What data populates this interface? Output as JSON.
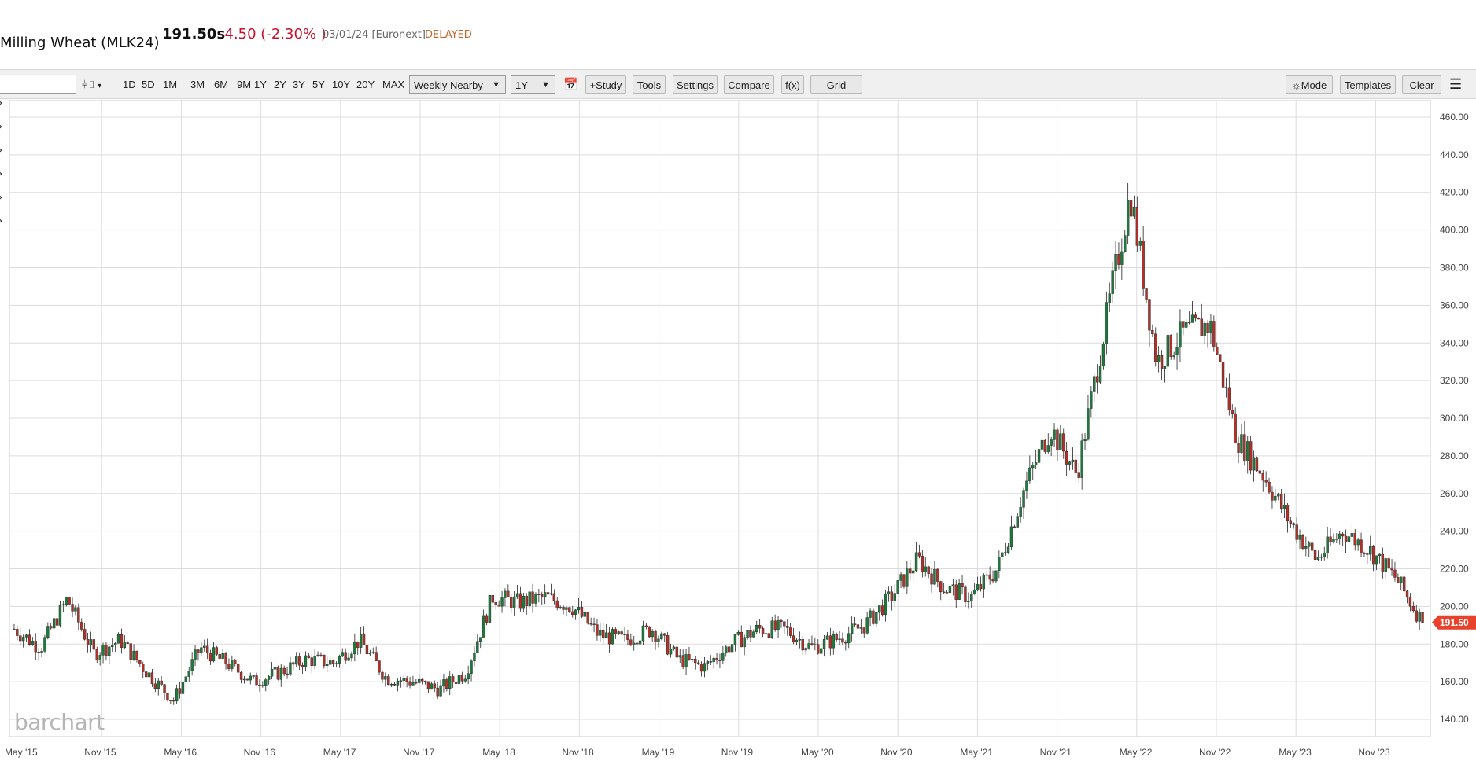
{
  "header": {
    "title": "Milling Wheat (MLK24)",
    "last_price": "191.50s",
    "change": "-4.50 (-2.30% )",
    "date_exchange": "03/01/24 [Euronext]",
    "status": "DELAYED"
  },
  "toolbar": {
    "symbol_value": "",
    "chart_type_icon": "candlestick-icon",
    "periods": [
      "1D",
      "5D",
      "1M",
      "3M",
      "6M",
      "9M",
      "1Y",
      "2Y",
      "3Y",
      "5Y",
      "10Y",
      "20Y",
      "MAX"
    ],
    "aggregation_select": "Weekly Nearby",
    "range_select": "1Y",
    "calendar_icon": "calendar-icon",
    "study": "+Study",
    "tools": "Tools",
    "settings": "Settings",
    "compare": "Compare",
    "fx": "f(x)",
    "grid": "Grid",
    "mode": "Mode",
    "templates": "Templates",
    "clear": "Clear",
    "menu_icon": "hamburger-icon"
  },
  "watermark": "barchart",
  "colors": {
    "up": "#1e7a3c",
    "down": "#b0302a",
    "price_tag": "#e8412c"
  },
  "chart_data": {
    "type": "line",
    "style": "candlestick",
    "xlabel": "",
    "ylabel": "",
    "ylim": [
      130,
      465
    ],
    "yticks": [
      "460.00",
      "440.00",
      "420.00",
      "400.00",
      "380.00",
      "360.00",
      "340.00",
      "320.00",
      "300.00",
      "280.00",
      "260.00",
      "240.00",
      "220.00",
      "200.00",
      "180.00",
      "160.00",
      "140.00"
    ],
    "xticks": [
      "May '15",
      "Nov '15",
      "May '16",
      "Nov '16",
      "May '17",
      "Nov '17",
      "May '18",
      "Nov '18",
      "May '19",
      "Nov '19",
      "May '20",
      "Nov '20",
      "May '21",
      "Nov '21",
      "May '22",
      "Nov '22",
      "May '23",
      "Nov '23"
    ],
    "last_price_label": "191.50",
    "grid": true,
    "series": [
      {
        "x": [
          "2015-05",
          "2015-07",
          "2015-09",
          "2015-11",
          "2016-01",
          "2016-03",
          "2016-05",
          "2016-07",
          "2016-09",
          "2016-11",
          "2017-01",
          "2017-03",
          "2017-05",
          "2017-07",
          "2017-09",
          "2017-11",
          "2018-01",
          "2018-03",
          "2018-05",
          "2018-07",
          "2018-09",
          "2018-11",
          "2019-01",
          "2019-03",
          "2019-05",
          "2019-07",
          "2019-09",
          "2019-11",
          "2020-01",
          "2020-03",
          "2020-05",
          "2020-07",
          "2020-09",
          "2020-11",
          "2021-01",
          "2021-03",
          "2021-05",
          "2021-07",
          "2021-09",
          "2021-11",
          "2022-01",
          "2022-03",
          "2022-05",
          "2022-07",
          "2022-09",
          "2022-11",
          "2023-01",
          "2023-03",
          "2023-05",
          "2023-07",
          "2023-09",
          "2023-11",
          "2024-01",
          "2024-03"
        ],
        "y": [
          188,
          178,
          204,
          175,
          182,
          165,
          150,
          178,
          170,
          160,
          165,
          172,
          170,
          182,
          162,
          160,
          156,
          165,
          205,
          202,
          205,
          200,
          185,
          182,
          188,
          172,
          168,
          180,
          188,
          188,
          178,
          183,
          190,
          205,
          225,
          210,
          205,
          220,
          262,
          295,
          270,
          345,
          420,
          330,
          345,
          350,
          290,
          270,
          245,
          225,
          240,
          230,
          215,
          191.5
        ]
      }
    ]
  }
}
